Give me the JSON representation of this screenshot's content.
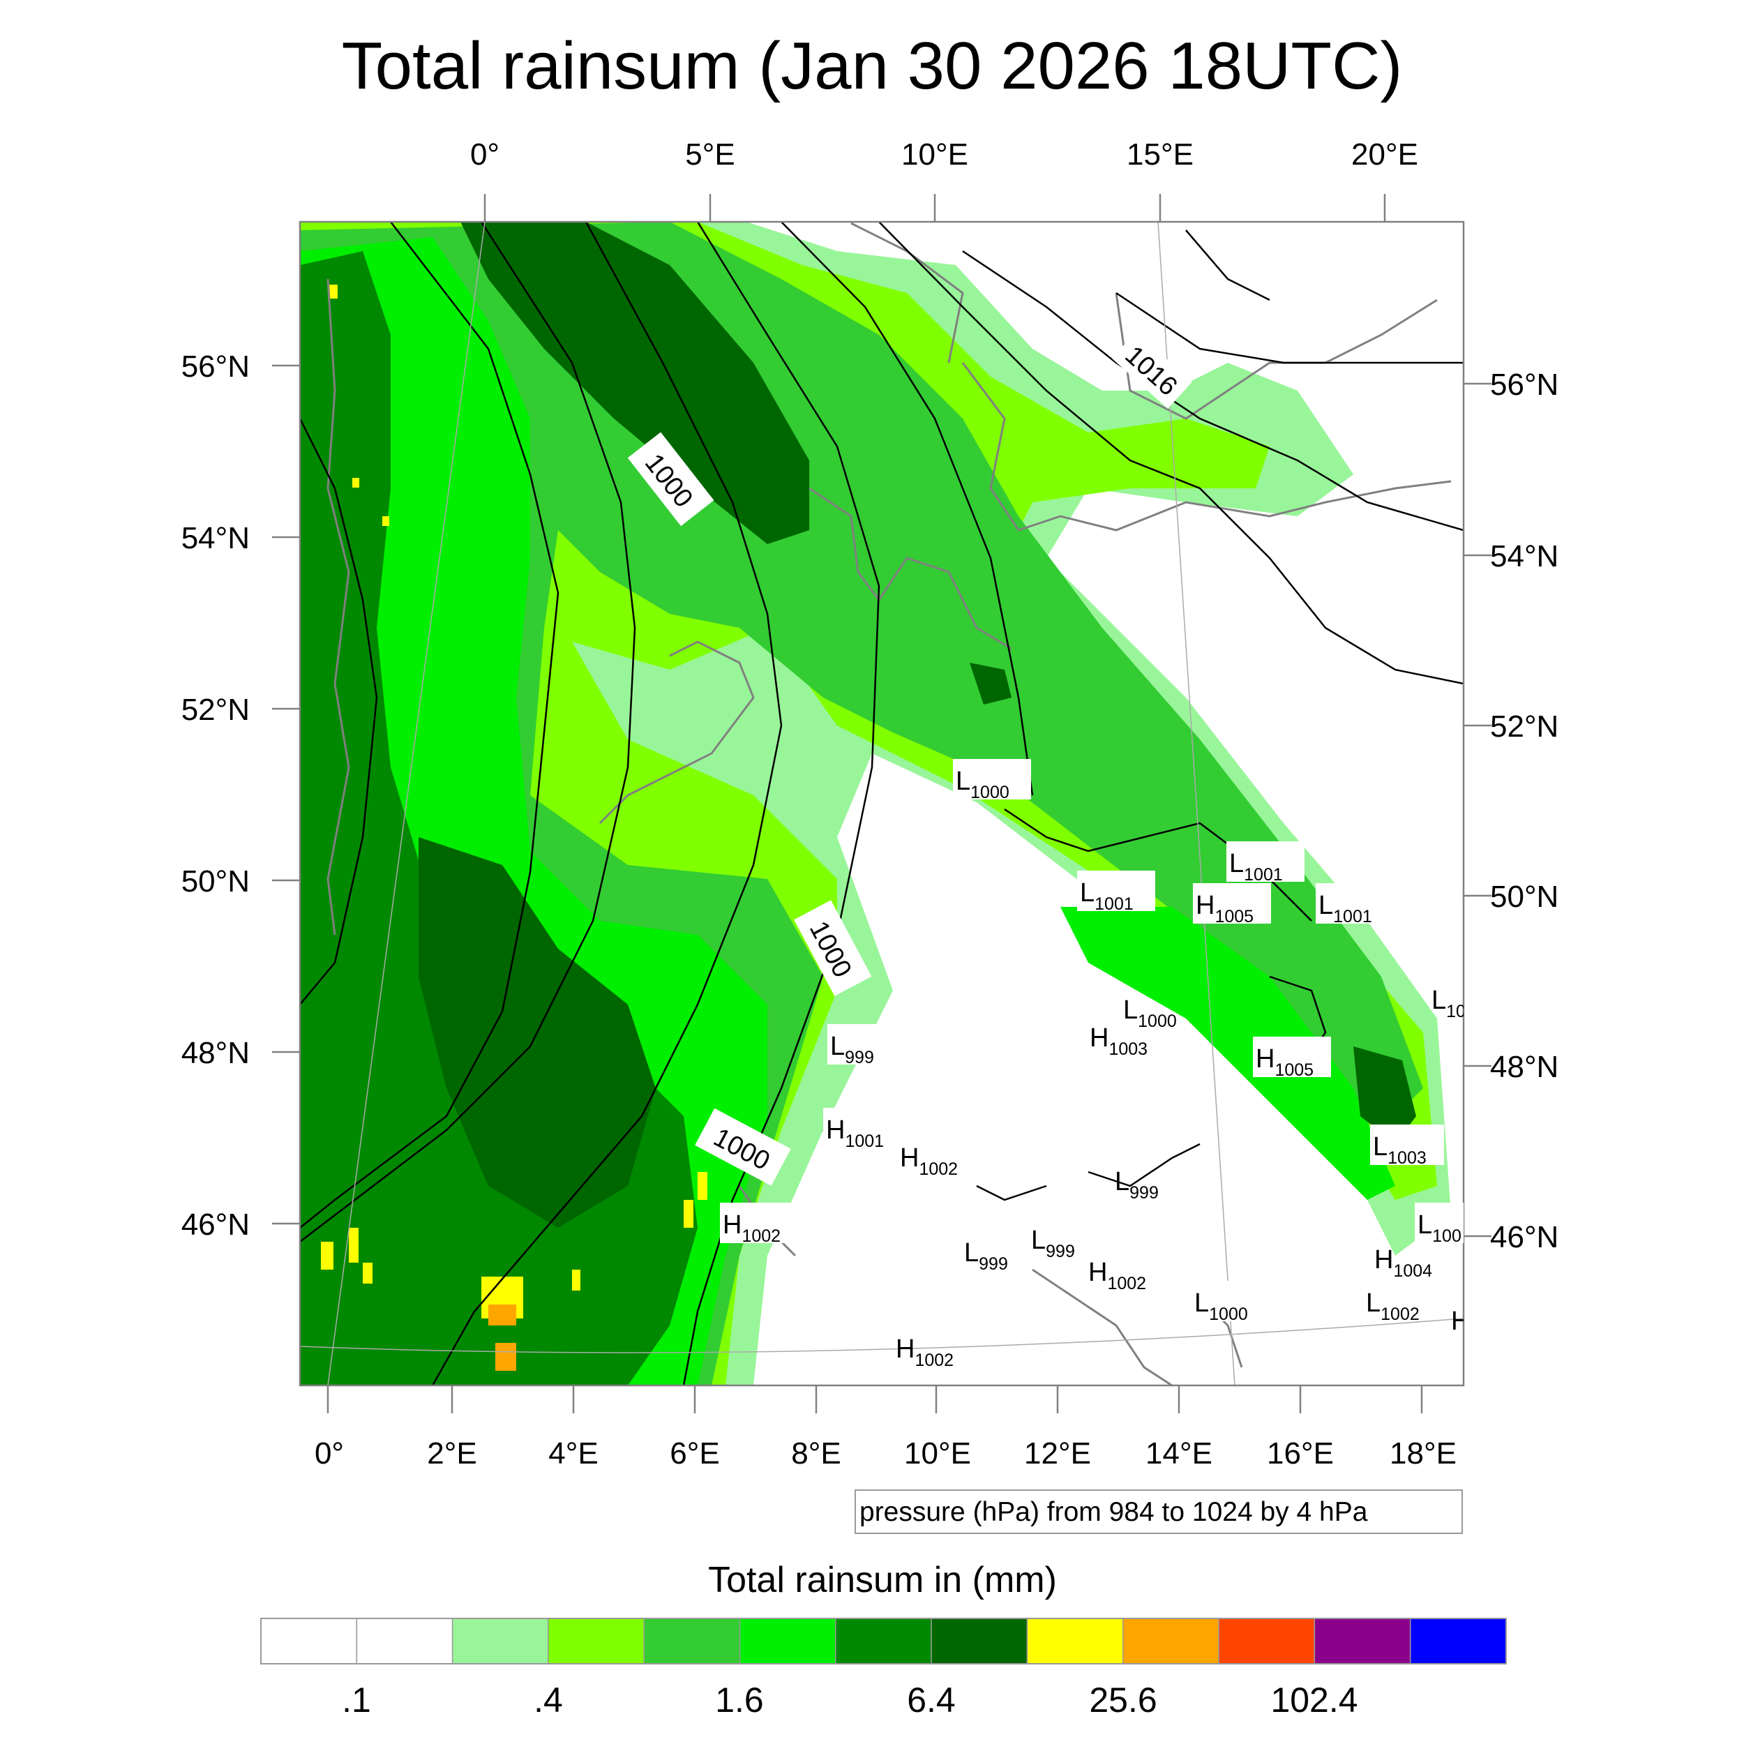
{
  "title": "Total rainsum (Jan 30 2026 18UTC)",
  "top_lon_labels": [
    "0°",
    "5°E",
    "10°E",
    "15°E",
    "20°E"
  ],
  "bottom_lon_labels": [
    "0°",
    "2°E",
    "4°E",
    "6°E",
    "8°E",
    "10°E",
    "12°E",
    "14°E",
    "16°E",
    "18°E"
  ],
  "left_lat_labels": [
    "56°N",
    "54°N",
    "52°N",
    "50°N",
    "48°N",
    "46°N"
  ],
  "right_lat_labels": [
    "56°N",
    "54°N",
    "52°N",
    "50°N",
    "48°N",
    "46°N"
  ],
  "contour_labels": [
    "1000",
    "1000",
    "1000",
    "1016"
  ],
  "pressure_centers": [
    {
      "letter": "L",
      "value": "1000"
    },
    {
      "letter": "L",
      "value": "1001"
    },
    {
      "letter": "L",
      "value": "1001"
    },
    {
      "letter": "H",
      "value": "1005"
    },
    {
      "letter": "L",
      "value": "1001"
    },
    {
      "letter": "L",
      "value": "10"
    },
    {
      "letter": "L",
      "value": "1000"
    },
    {
      "letter": "H",
      "value": "1003"
    },
    {
      "letter": "H",
      "value": "1005"
    },
    {
      "letter": "L",
      "value": "999"
    },
    {
      "letter": "H",
      "value": "1001"
    },
    {
      "letter": "H",
      "value": "1002"
    },
    {
      "letter": "L",
      "value": "999"
    },
    {
      "letter": "L",
      "value": "1003"
    },
    {
      "letter": "H",
      "value": "1002"
    },
    {
      "letter": "L",
      "value": "999"
    },
    {
      "letter": "L",
      "value": "999"
    },
    {
      "letter": "L",
      "value": "100"
    },
    {
      "letter": "H",
      "value": "1004"
    },
    {
      "letter": "H",
      "value": "1002"
    },
    {
      "letter": "L",
      "value": "1000"
    },
    {
      "letter": "L",
      "value": "1002"
    },
    {
      "letter": "H",
      "value": ""
    },
    {
      "letter": "H",
      "value": "1002"
    }
  ],
  "pressure_note": "pressure (hPa) from 984 to 1024 by 4 hPa",
  "colorbar": {
    "title": "Total rainsum in (mm)",
    "colors": [
      "#ffffff",
      "#ffffff",
      "#99f599",
      "#80ff00",
      "#33cc33",
      "#00ee00",
      "#008800",
      "#006600",
      "#ffff00",
      "#ffa500",
      "#ff4500",
      "#8b008b",
      "#0000ff"
    ],
    "tick_labels": [
      ".1",
      ".4",
      "1.6",
      "6.4",
      "25.6",
      "102.4"
    ]
  },
  "colors": {
    "land_line": "#808080",
    "isobar": "#000000",
    "frame": "#808080"
  }
}
